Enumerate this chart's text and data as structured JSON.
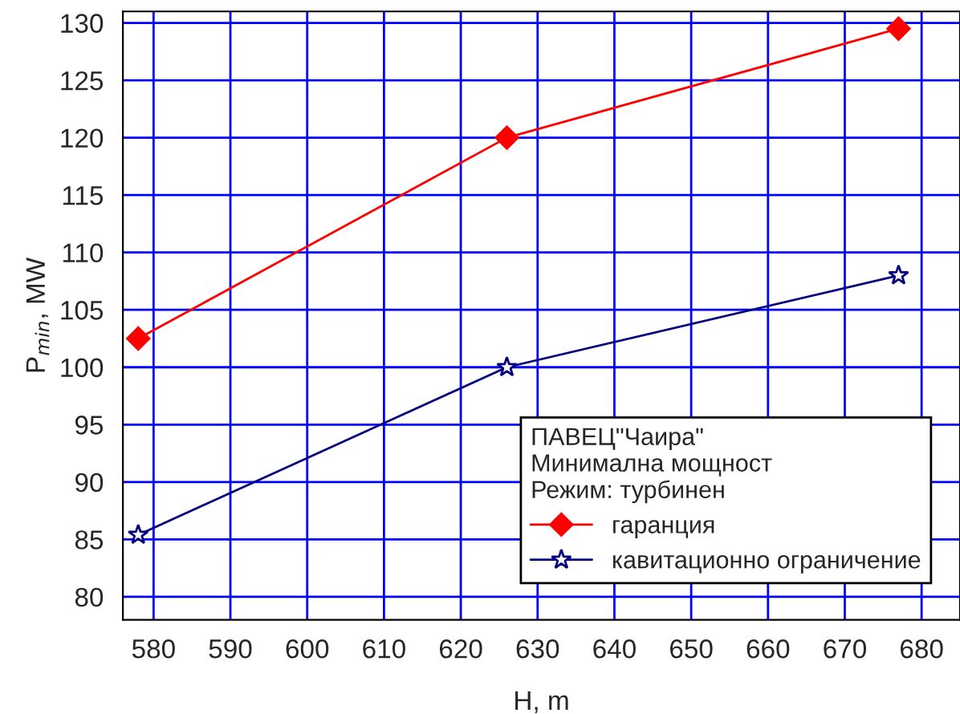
{
  "chart_data": {
    "type": "line",
    "xlabel": "H, m",
    "ylabel": "P$_{min}$, MW",
    "legend_title": "ПАВЕЦ\"Чаира\"\nМинимална мощност\nРежим: турбинен",
    "series": [
      {
        "name": "гаранция",
        "color": "#ff0000",
        "marker": "diamond",
        "x": [
          578,
          626,
          677
        ],
        "values": [
          102.5,
          120,
          129.5
        ]
      },
      {
        "name": "кавитационно ограничение",
        "color": "#000080",
        "marker": "star",
        "x": [
          578,
          626,
          677
        ],
        "values": [
          85.4,
          100,
          108
        ]
      }
    ],
    "xlim": [
      576,
      685
    ],
    "xticks": [
      580,
      590,
      600,
      610,
      620,
      630,
      640,
      650,
      660,
      670,
      680
    ],
    "ylim": [
      78,
      131
    ],
    "yticks": [
      80,
      85,
      90,
      95,
      100,
      105,
      110,
      115,
      120,
      125,
      130
    ],
    "grid": true,
    "legend": "bottom right",
    "line_style": "solid"
  }
}
